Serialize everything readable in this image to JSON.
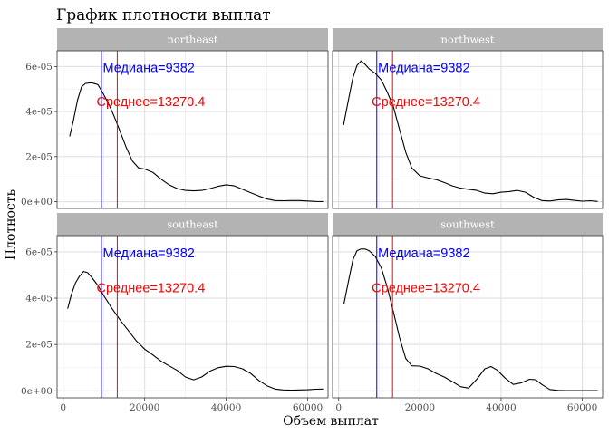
{
  "chart_data": {
    "type": "line",
    "title": "График плотности выплат",
    "xlabel": "Объем выплат",
    "ylabel": "Плотность",
    "xlim": [
      -1500,
      65000
    ],
    "ylim": [
      -3e-06,
      6.7e-05
    ],
    "x_ticks": [
      0,
      20000,
      40000,
      60000
    ],
    "x_tick_labels": [
      "0",
      "20000",
      "40000",
      "60000"
    ],
    "x_minor_ticks": [
      10000,
      30000,
      50000
    ],
    "y_ticks": [
      0,
      2e-05,
      4e-05,
      6e-05
    ],
    "y_tick_labels": [
      "0e+00",
      "2e-05",
      "4e-05",
      "6e-05"
    ],
    "y_minor_ticks": [
      1e-05,
      3e-05,
      5e-05
    ],
    "grid": true,
    "median": 9382,
    "mean": 13270.4,
    "median_label": "Медиана=9382",
    "mean_label": "Среднее=13270.4",
    "median_color": "#0000ff",
    "mean_color": "#ff0000",
    "curve_color": "#000000",
    "strip_color": "#b3b3b3",
    "panel_border_color": "#333333",
    "grid_color": "#ebebeb",
    "annotation_positions": {
      "median_label": {
        "x": 21000,
        "y": 5.95e-05
      },
      "mean_label": {
        "x": 21500,
        "y": 4.45e-05
      }
    },
    "panels": [
      {
        "name": "northeast",
        "points": [
          [
            1600,
            2.9e-05
          ],
          [
            2500,
            3.6e-05
          ],
          [
            3500,
            4.5e-05
          ],
          [
            4500,
            5.1e-05
          ],
          [
            5500,
            5.25e-05
          ],
          [
            7000,
            5.28e-05
          ],
          [
            8500,
            5.2e-05
          ],
          [
            9500,
            4.9e-05
          ],
          [
            11000,
            4.4e-05
          ],
          [
            12500,
            3.8e-05
          ],
          [
            14000,
            3.1e-05
          ],
          [
            15500,
            2.4e-05
          ],
          [
            17000,
            1.8e-05
          ],
          [
            18500,
            1.5e-05
          ],
          [
            20000,
            1.45e-05
          ],
          [
            22000,
            1.3e-05
          ],
          [
            24000,
            1e-05
          ],
          [
            26000,
            7.5e-06
          ],
          [
            28000,
            5.8e-06
          ],
          [
            30000,
            5e-06
          ],
          [
            32000,
            4.8e-06
          ],
          [
            34000,
            5e-06
          ],
          [
            36000,
            5.8e-06
          ],
          [
            38000,
            6.8e-06
          ],
          [
            40000,
            7.5e-06
          ],
          [
            42000,
            7e-06
          ],
          [
            44000,
            5.5e-06
          ],
          [
            46000,
            4e-06
          ],
          [
            48000,
            2.5e-06
          ],
          [
            50000,
            1.2e-06
          ],
          [
            52000,
            5e-07
          ],
          [
            54000,
            4e-07
          ],
          [
            56000,
            5e-07
          ],
          [
            58000,
            5e-07
          ],
          [
            60000,
            3e-07
          ],
          [
            62000,
            1e-07
          ],
          [
            63800,
            5e-08
          ]
        ]
      },
      {
        "name": "northwest",
        "points": [
          [
            1200,
            3.4e-05
          ],
          [
            2500,
            4.6e-05
          ],
          [
            3500,
            5.5e-05
          ],
          [
            4500,
            6.05e-05
          ],
          [
            5500,
            6.25e-05
          ],
          [
            6500,
            6.1e-05
          ],
          [
            7500,
            5.9e-05
          ],
          [
            9000,
            5.7e-05
          ],
          [
            10500,
            5.4e-05
          ],
          [
            12000,
            4.85e-05
          ],
          [
            13500,
            4.2e-05
          ],
          [
            15000,
            3.2e-05
          ],
          [
            16500,
            2.2e-05
          ],
          [
            18000,
            1.5e-05
          ],
          [
            20000,
            1.15e-05
          ],
          [
            22000,
            1.05e-05
          ],
          [
            24000,
            9.8e-06
          ],
          [
            26000,
            8.5e-06
          ],
          [
            28000,
            7e-06
          ],
          [
            30000,
            6e-06
          ],
          [
            32000,
            5.5e-06
          ],
          [
            34000,
            5e-06
          ],
          [
            36000,
            3.8e-06
          ],
          [
            38000,
            3.5e-06
          ],
          [
            40000,
            4.2e-06
          ],
          [
            42000,
            4.5e-06
          ],
          [
            44000,
            5e-06
          ],
          [
            46000,
            4.2e-06
          ],
          [
            48000,
            2e-06
          ],
          [
            50000,
            5e-07
          ],
          [
            52000,
            3e-07
          ],
          [
            54000,
            8e-07
          ],
          [
            56000,
            1e-06
          ],
          [
            58000,
            6e-07
          ],
          [
            60000,
            2e-07
          ],
          [
            62000,
            4e-07
          ],
          [
            63800,
            1e-07
          ]
        ]
      },
      {
        "name": "southeast",
        "points": [
          [
            1100,
            3.55e-05
          ],
          [
            2000,
            4.15e-05
          ],
          [
            3000,
            4.65e-05
          ],
          [
            4000,
            4.95e-05
          ],
          [
            5000,
            5.15e-05
          ],
          [
            6000,
            5.1e-05
          ],
          [
            7000,
            4.9e-05
          ],
          [
            8500,
            4.55e-05
          ],
          [
            10000,
            4.1e-05
          ],
          [
            12000,
            3.55e-05
          ],
          [
            14000,
            3.05e-05
          ],
          [
            16000,
            2.6e-05
          ],
          [
            18000,
            2.15e-05
          ],
          [
            20000,
            1.8e-05
          ],
          [
            22000,
            1.55e-05
          ],
          [
            24000,
            1.28e-05
          ],
          [
            26000,
            1.08e-05
          ],
          [
            28000,
            8.8e-06
          ],
          [
            30000,
            6e-06
          ],
          [
            32000,
            4.8e-06
          ],
          [
            34000,
            6e-06
          ],
          [
            36000,
            8.5e-06
          ],
          [
            38000,
            1e-05
          ],
          [
            40000,
            1.06e-05
          ],
          [
            42000,
            1.05e-05
          ],
          [
            44000,
            9.5e-06
          ],
          [
            46000,
            7.5e-06
          ],
          [
            48000,
            4.5e-06
          ],
          [
            50000,
            2.2e-06
          ],
          [
            52000,
            8e-07
          ],
          [
            54000,
            4e-07
          ],
          [
            56000,
            3e-07
          ],
          [
            58000,
            4e-07
          ],
          [
            60000,
            5e-07
          ],
          [
            62000,
            7e-07
          ],
          [
            63800,
            8e-07
          ]
        ]
      },
      {
        "name": "southwest",
        "points": [
          [
            1300,
            3.75e-05
          ],
          [
            2500,
            4.8e-05
          ],
          [
            3500,
            5.65e-05
          ],
          [
            4500,
            6.05e-05
          ],
          [
            5500,
            6.12e-05
          ],
          [
            6500,
            6.12e-05
          ],
          [
            7500,
            6.05e-05
          ],
          [
            9000,
            5.8e-05
          ],
          [
            10500,
            5.3e-05
          ],
          [
            12000,
            4.45e-05
          ],
          [
            13500,
            3.4e-05
          ],
          [
            15000,
            2.3e-05
          ],
          [
            16500,
            1.4e-05
          ],
          [
            18000,
            1.08e-05
          ],
          [
            20000,
            1.07e-05
          ],
          [
            22000,
            9.5e-06
          ],
          [
            24000,
            7.5e-06
          ],
          [
            26000,
            6e-06
          ],
          [
            28000,
            4e-06
          ],
          [
            30000,
            1.8e-06
          ],
          [
            32000,
            1.2e-06
          ],
          [
            34000,
            5e-06
          ],
          [
            36000,
            9.5e-06
          ],
          [
            37500,
            1.05e-05
          ],
          [
            39000,
            9e-06
          ],
          [
            41000,
            5.5e-06
          ],
          [
            43000,
            2.8e-06
          ],
          [
            45000,
            3.5e-06
          ],
          [
            47000,
            5e-06
          ],
          [
            48500,
            4.8e-06
          ],
          [
            50000,
            2.8e-06
          ],
          [
            52000,
            6e-07
          ],
          [
            54000,
            2e-07
          ],
          [
            56000,
            1e-07
          ],
          [
            58000,
            1e-07
          ],
          [
            60000,
            1e-07
          ],
          [
            62000,
            1e-07
          ],
          [
            63800,
            1e-07
          ]
        ]
      }
    ]
  }
}
